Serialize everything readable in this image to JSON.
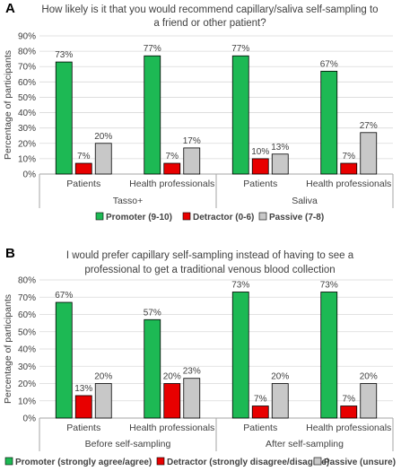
{
  "colors": {
    "promoter": "#1DB954",
    "detractor": "#E80000",
    "passive": "#C8C8C8",
    "grid": "#D9D9D9",
    "axis": "#A6A6A6"
  },
  "chart_data": [
    {
      "type": "bar",
      "panel_label": "A",
      "title_lines": [
        "How likely is it that you would recommend capillary/saliva self-sampling to",
        "a friend or other patient?"
      ],
      "ylabel": "Percentage of participants",
      "ylim": [
        0,
        90
      ],
      "yticks": [
        "0%",
        "10%",
        "20%",
        "30%",
        "40%",
        "50%",
        "60%",
        "70%",
        "80%",
        "90%"
      ],
      "grid": true,
      "categories": [
        "Patients",
        "Health professionals",
        "Patients",
        "Health professionals"
      ],
      "groups": [
        "Tasso+",
        "Saliva"
      ],
      "series": [
        {
          "name": "Promoter (9-10)",
          "values": [
            73,
            77,
            77,
            67
          ],
          "labels": [
            "73%",
            "77%",
            "77%",
            "67%"
          ]
        },
        {
          "name": "Detractor (0-6)",
          "values": [
            7,
            7,
            10,
            7
          ],
          "labels": [
            "7%",
            "7%",
            "10%",
            "7%"
          ]
        },
        {
          "name": "Passive (7-8)",
          "values": [
            20,
            17,
            13,
            27
          ],
          "labels": [
            "20%",
            "17%",
            "13%",
            "27%"
          ]
        }
      ],
      "legend_position": "bottom"
    },
    {
      "type": "bar",
      "panel_label": "B",
      "title_lines": [
        "I would prefer capillary self-sampling instead of having to see a",
        "professional to get a traditional venous blood collection"
      ],
      "ylabel": "Percentage of participants",
      "ylim": [
        0,
        80
      ],
      "yticks": [
        "0%",
        "10%",
        "20%",
        "30%",
        "40%",
        "50%",
        "60%",
        "70%",
        "80%"
      ],
      "grid": true,
      "categories": [
        "Patients",
        "Health professionals",
        "Patients",
        "Health professionals"
      ],
      "groups": [
        "Before self-sampling",
        "After self-sampling"
      ],
      "series": [
        {
          "name": "Promoter (strongly agree/agree)",
          "values": [
            67,
            57,
            73,
            73
          ],
          "labels": [
            "67%",
            "57%",
            "73%",
            "73%"
          ]
        },
        {
          "name": "Detractor (strongly disagree/disagree)",
          "values": [
            13,
            20,
            7,
            7
          ],
          "labels": [
            "13%",
            "20%",
            "7%",
            "7%"
          ]
        },
        {
          "name": "Passive (unsure)",
          "values": [
            20,
            23,
            20,
            20
          ],
          "labels": [
            "20%",
            "23%",
            "20%",
            "20%"
          ]
        }
      ],
      "legend_position": "bottom"
    }
  ]
}
